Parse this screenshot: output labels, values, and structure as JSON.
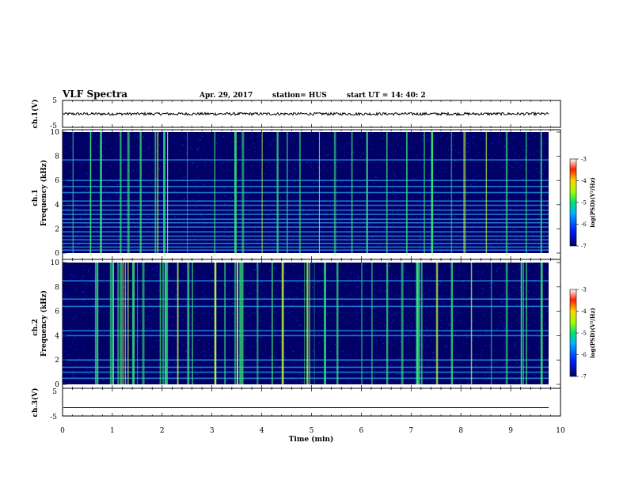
{
  "header": {
    "title": "VLF Spectra",
    "date": "Apr. 29, 2017",
    "station": "station= HUS",
    "start": "start  UT =   14: 40: 2"
  },
  "chart_data": [
    {
      "type": "line",
      "id": "ch1-waveform",
      "ylabel": "ch.1(V)",
      "ylim": [
        -5,
        5
      ],
      "y_ticks": [
        "5",
        "-5"
      ],
      "level": 0,
      "noise_amplitude": 0.5,
      "xlim": [
        0,
        10
      ]
    },
    {
      "type": "heatmap",
      "id": "ch1-spectrogram",
      "ylabel_top": "ch.1",
      "ylabel": "Frequency  (kHz)",
      "ylim": [
        0,
        10
      ],
      "y_ticks": [
        "0",
        "2",
        "4",
        "6",
        "8",
        "10"
      ],
      "xlim": [
        0,
        9.85
      ],
      "colorbar": {
        "label": "log(PSD)(V²/Hz)",
        "ticks": [
          "-3",
          "-4",
          "-5",
          "-6",
          "-7"
        ],
        "range": [
          -7,
          -3
        ]
      },
      "horizontal_lines_khz": [
        0.25,
        0.5,
        0.8,
        1.1,
        1.4,
        1.75,
        2.15,
        2.5,
        2.8,
        3.2,
        3.55,
        3.95,
        4.3,
        5.0,
        5.5,
        6.0,
        7.7
      ],
      "burst_minutes": [
        0.2,
        0.55,
        0.75,
        1.15,
        1.3,
        1.55,
        1.85,
        1.9,
        2.02,
        2.1,
        2.5,
        3.05,
        3.45,
        3.6,
        4.0,
        4.3,
        4.5,
        4.75,
        5.15,
        5.45,
        5.8,
        6.1,
        6.5,
        6.9,
        7.25,
        7.4,
        7.8,
        8.05,
        8.5,
        8.9,
        9.3,
        9.6
      ]
    },
    {
      "type": "heatmap",
      "id": "ch2-spectrogram",
      "ylabel_top": "ch.2",
      "ylabel": "Frequency  (kHz)",
      "ylim": [
        0,
        10
      ],
      "y_ticks": [
        "0",
        "2",
        "4",
        "6",
        "8",
        "10"
      ],
      "xlim": [
        0,
        9.85
      ],
      "colorbar": {
        "label": "log(PSD)(V²/Hz)",
        "ticks": [
          "-3",
          "-4",
          "-5",
          "-6",
          "-7"
        ],
        "range": [
          -7,
          -3
        ]
      },
      "horizontal_lines_khz": [
        0.5,
        1.0,
        1.4,
        2.0,
        4.0,
        4.4,
        6.4,
        7.0,
        8.5
      ],
      "burst_minutes": [
        0.65,
        0.7,
        0.95,
        1.0,
        1.1,
        1.15,
        1.2,
        1.25,
        1.3,
        1.4,
        1.5,
        1.6,
        1.95,
        2.0,
        2.05,
        2.1,
        2.3,
        2.5,
        2.6,
        3.05,
        3.25,
        3.45,
        3.5,
        3.55,
        3.6,
        3.9,
        4.2,
        4.4,
        4.85,
        4.9,
        4.95,
        5.05,
        5.25,
        5.5,
        6.0,
        6.2,
        6.5,
        6.8,
        7.1,
        7.15,
        7.2,
        7.5,
        7.8,
        8.2,
        8.6,
        8.9,
        9.2,
        9.25,
        9.3,
        9.6
      ]
    },
    {
      "type": "line",
      "id": "ch3-waveform",
      "ylabel": "ch.3(V)",
      "ylim": [
        -5,
        5
      ],
      "y_ticks": [
        "5",
        "-5"
      ],
      "level": -2,
      "noise_amplitude": 0,
      "xlim": [
        0,
        10
      ],
      "xlabel": "Time  (min)",
      "x_ticks": [
        "0",
        "1",
        "2",
        "3",
        "4",
        "5",
        "6",
        "7",
        "8",
        "9",
        "10"
      ]
    }
  ],
  "colors": {
    "background": "#000066",
    "noise": "#0a3cff",
    "lines": "#2aa8ff",
    "burst": "#39e67a",
    "hot": "#c6ff3a"
  }
}
